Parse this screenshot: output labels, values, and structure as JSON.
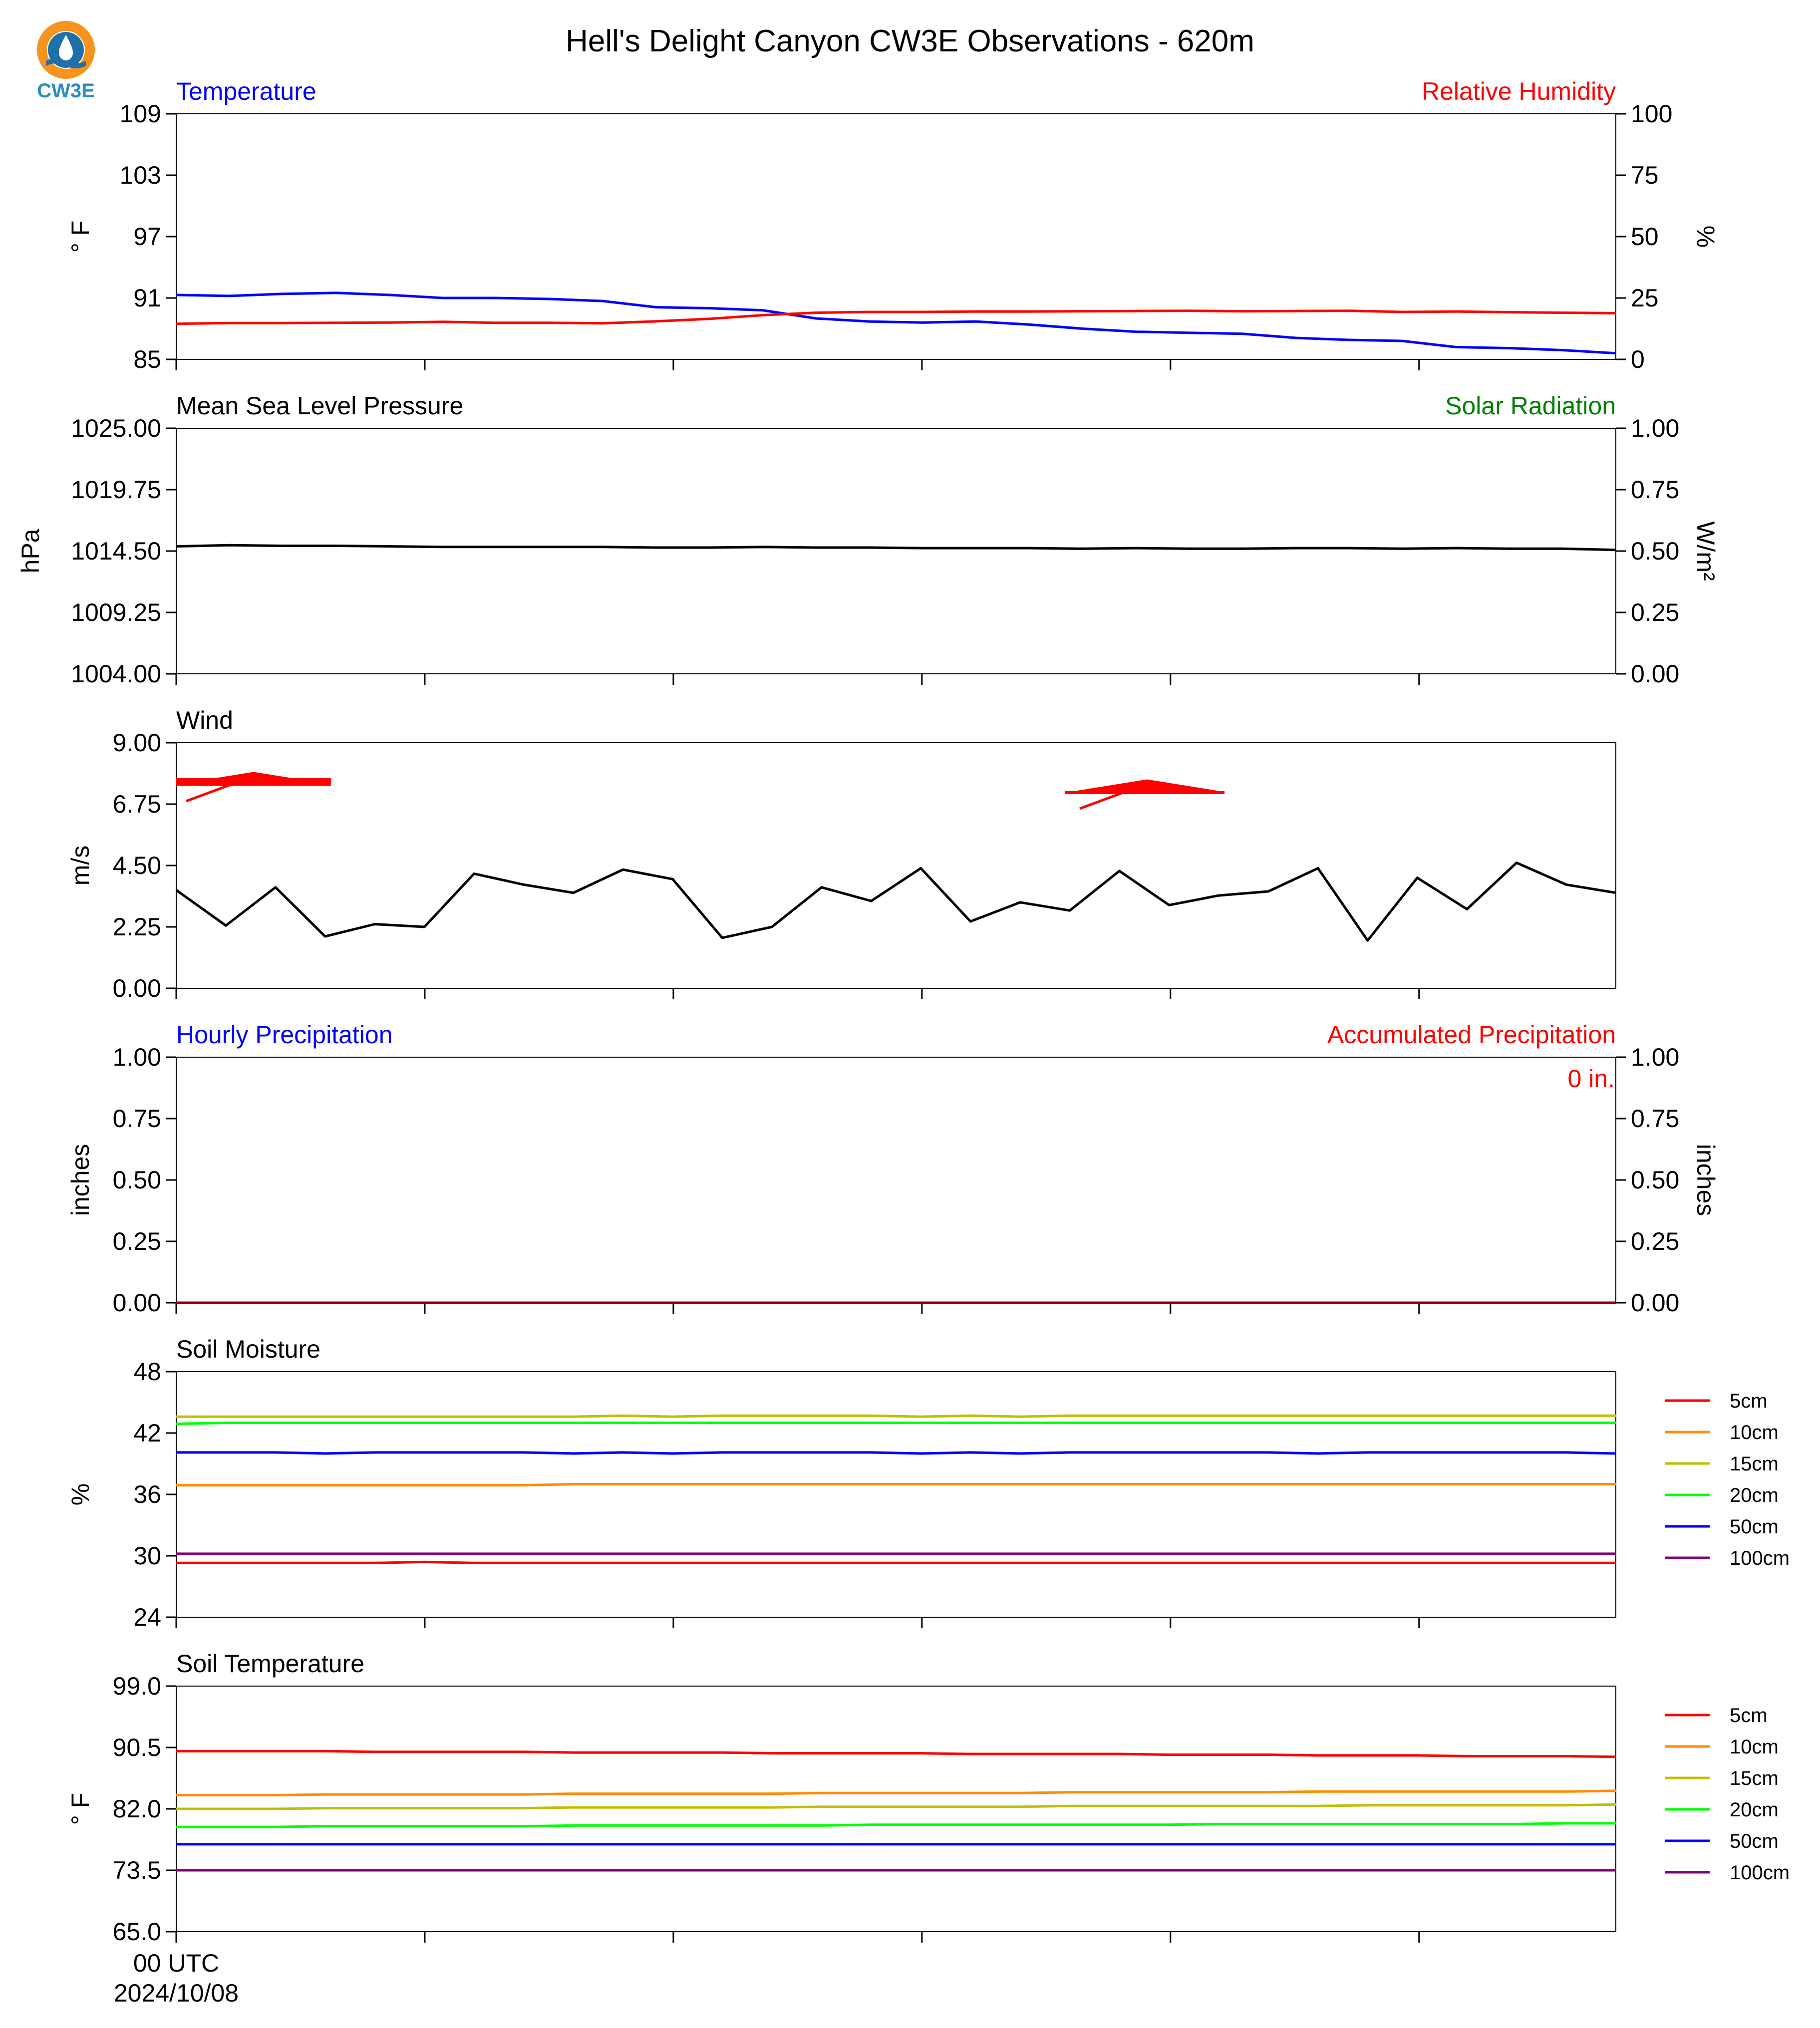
{
  "title": "Hell's Delight Canyon CW3E Observations - 620m",
  "logo": {
    "text": "CW3E",
    "color_top": "#f7941d",
    "color_bottom": "#1f6fa8"
  },
  "xaxis": {
    "first_tick": "00 UTC",
    "first_date": "2024/10/08"
  },
  "chart_data": [
    {
      "type": "line",
      "panel": "temperature-humidity",
      "left_title": "Temperature",
      "right_title": "Relative Humidity",
      "left_unit": "° F",
      "right_unit": "%",
      "left_ticks": [
        "85",
        "91",
        "97",
        "103",
        "109"
      ],
      "right_ticks": [
        "0",
        "25",
        "50",
        "75",
        "100"
      ],
      "ylim": [
        85,
        109
      ],
      "ylim_right": [
        0,
        100
      ],
      "series": [
        {
          "axis": "left",
          "color": "#0000ff",
          "values": [
            91.3,
            91.2,
            91.4,
            91.5,
            91.3,
            91.0,
            91.0,
            90.9,
            90.7,
            90.1,
            90.0,
            89.8,
            89.0,
            88.7,
            88.6,
            88.7,
            88.4,
            88.0,
            87.7,
            87.6,
            87.5,
            87.1,
            86.9,
            86.8,
            86.2,
            86.1,
            85.9,
            85.6
          ]
        },
        {
          "axis": "right",
          "color": "#ff0000",
          "values": [
            14.5,
            14.8,
            14.8,
            14.9,
            15.0,
            15.3,
            14.9,
            14.9,
            14.7,
            15.5,
            16.5,
            18.0,
            19.0,
            19.3,
            19.3,
            19.5,
            19.5,
            19.6,
            19.7,
            19.8,
            19.6,
            19.7,
            19.8,
            19.3,
            19.5,
            19.2,
            19.0,
            18.8
          ]
        }
      ]
    },
    {
      "type": "line",
      "panel": "pressure-solar",
      "left_title": "Mean Sea Level Pressure",
      "right_title": "Solar Radiation",
      "left_unit": "hPa",
      "right_unit": "W/m²",
      "left_ticks": [
        "1004.00",
        "1009.25",
        "1014.50",
        "1019.75",
        "1025.00"
      ],
      "right_ticks": [
        "0.00",
        "0.25",
        "0.50",
        "0.75",
        "1.00"
      ],
      "ylim": [
        1004,
        1025
      ],
      "ylim_right": [
        0,
        1
      ],
      "series": [
        {
          "axis": "left",
          "color": "#000000",
          "values": [
            1014.9,
            1015.0,
            1014.95,
            1014.95,
            1014.9,
            1014.85,
            1014.85,
            1014.85,
            1014.85,
            1014.8,
            1014.8,
            1014.85,
            1014.8,
            1014.8,
            1014.75,
            1014.75,
            1014.75,
            1014.7,
            1014.75,
            1014.7,
            1014.7,
            1014.75,
            1014.75,
            1014.7,
            1014.75,
            1014.7,
            1014.7,
            1014.6
          ]
        }
      ]
    },
    {
      "type": "line",
      "panel": "wind",
      "left_title": "Wind",
      "left_unit": "m/s",
      "left_ticks": [
        "0.00",
        "2.25",
        "4.50",
        "6.75",
        "9.00"
      ],
      "ylim": [
        0,
        9
      ],
      "series": [
        {
          "axis": "left",
          "color": "#000000",
          "values": [
            3.6,
            2.3,
            3.7,
            1.9,
            2.35,
            2.25,
            4.2,
            3.8,
            3.5,
            4.35,
            4.0,
            1.85,
            2.25,
            3.7,
            3.2,
            4.4,
            2.45,
            3.15,
            2.85,
            4.3,
            3.05,
            3.4,
            3.55,
            4.4,
            1.75,
            4.05,
            2.9,
            4.6,
            3.8,
            3.5
          ]
        }
      ],
      "wind_barbs": [
        {
          "x_index": 0,
          "speed_kt": 15,
          "color": "#ff0000"
        },
        {
          "x_index": 18,
          "speed_kt": 15,
          "color": "#ff0000"
        }
      ]
    },
    {
      "type": "line",
      "panel": "precipitation",
      "left_title": "Hourly Precipitation",
      "right_title": "Accumulated Precipitation",
      "left_unit": "inches",
      "right_unit": "inches",
      "left_ticks": [
        "0.00",
        "0.25",
        "0.50",
        "0.75",
        "1.00"
      ],
      "right_ticks": [
        "0.00",
        "0.25",
        "0.50",
        "0.75",
        "1.00"
      ],
      "ylim": [
        0,
        1
      ],
      "ylim_right": [
        0,
        1
      ],
      "accum_label": "0 in.",
      "series": [
        {
          "axis": "left",
          "color": "#0000ff",
          "values": [
            0,
            0,
            0,
            0,
            0,
            0,
            0,
            0,
            0,
            0,
            0,
            0,
            0,
            0,
            0,
            0,
            0,
            0,
            0,
            0,
            0,
            0,
            0,
            0,
            0,
            0,
            0,
            0,
            0,
            0
          ]
        },
        {
          "axis": "right",
          "color": "#8b0000",
          "values": [
            0,
            0,
            0,
            0,
            0,
            0,
            0,
            0,
            0,
            0,
            0,
            0,
            0,
            0,
            0,
            0,
            0,
            0,
            0,
            0,
            0,
            0,
            0,
            0,
            0,
            0,
            0,
            0,
            0,
            0
          ]
        }
      ]
    },
    {
      "type": "line",
      "panel": "soil-moisture",
      "left_title": "Soil Moisture",
      "left_unit": "%",
      "left_ticks": [
        "24",
        "30",
        "36",
        "42",
        "48"
      ],
      "ylim": [
        24,
        48
      ],
      "series": [
        {
          "name": "5cm",
          "color": "#ff0000",
          "values": [
            29.3,
            29.3,
            29.3,
            29.3,
            29.3,
            29.4,
            29.3,
            29.3,
            29.3,
            29.3,
            29.3,
            29.3,
            29.3,
            29.3,
            29.3,
            29.3,
            29.3,
            29.3,
            29.3,
            29.3,
            29.3,
            29.3,
            29.3,
            29.3,
            29.3,
            29.3,
            29.3,
            29.3,
            29.3,
            29.3
          ]
        },
        {
          "name": "10cm",
          "color": "#ff8c00",
          "values": [
            36.9,
            36.9,
            36.9,
            36.9,
            36.9,
            36.9,
            36.9,
            36.9,
            37.0,
            37.0,
            37.0,
            37.0,
            37.0,
            37.0,
            37.0,
            37.0,
            37.0,
            37.0,
            37.0,
            37.0,
            37.0,
            37.0,
            37.0,
            37.0,
            37.0,
            37.0,
            37.0,
            37.0,
            37.0,
            37.0
          ]
        },
        {
          "name": "15cm",
          "color": "#bfbf00",
          "values": [
            43.6,
            43.6,
            43.6,
            43.6,
            43.6,
            43.6,
            43.6,
            43.6,
            43.6,
            43.7,
            43.6,
            43.7,
            43.7,
            43.7,
            43.7,
            43.6,
            43.7,
            43.6,
            43.7,
            43.7,
            43.7,
            43.7,
            43.7,
            43.7,
            43.7,
            43.7,
            43.7,
            43.7,
            43.7,
            43.7
          ]
        },
        {
          "name": "20cm",
          "color": "#00ff00",
          "values": [
            42.9,
            43.0,
            43.0,
            43.0,
            43.0,
            43.0,
            43.0,
            43.0,
            43.0,
            43.0,
            43.0,
            43.0,
            43.0,
            43.0,
            43.0,
            43.0,
            43.0,
            43.0,
            43.0,
            43.0,
            43.0,
            43.0,
            43.0,
            43.0,
            43.0,
            43.0,
            43.0,
            43.0,
            43.0,
            43.0
          ]
        },
        {
          "name": "50cm",
          "color": "#0000ff",
          "values": [
            40.1,
            40.1,
            40.1,
            40.0,
            40.1,
            40.1,
            40.1,
            40.1,
            40.0,
            40.1,
            40.0,
            40.1,
            40.1,
            40.1,
            40.1,
            40.0,
            40.1,
            40.0,
            40.1,
            40.1,
            40.1,
            40.1,
            40.1,
            40.0,
            40.1,
            40.1,
            40.1,
            40.1,
            40.1,
            40.0
          ]
        },
        {
          "name": "100cm",
          "color": "#800080",
          "values": [
            30.2,
            30.2,
            30.2,
            30.2,
            30.2,
            30.2,
            30.2,
            30.2,
            30.2,
            30.2,
            30.2,
            30.2,
            30.2,
            30.2,
            30.2,
            30.2,
            30.2,
            30.2,
            30.2,
            30.2,
            30.2,
            30.2,
            30.2,
            30.2,
            30.2,
            30.2,
            30.2,
            30.2,
            30.2,
            30.2
          ]
        }
      ]
    },
    {
      "type": "line",
      "panel": "soil-temperature",
      "left_title": "Soil Temperature",
      "left_unit": "° F",
      "left_ticks": [
        "65.0",
        "73.5",
        "82.0",
        "90.5",
        "99.0"
      ],
      "ylim": [
        65,
        99
      ],
      "series": [
        {
          "name": "5cm",
          "color": "#ff0000",
          "values": [
            90.0,
            90.0,
            90.0,
            90.0,
            89.9,
            89.9,
            89.9,
            89.9,
            89.8,
            89.8,
            89.8,
            89.8,
            89.7,
            89.7,
            89.7,
            89.7,
            89.6,
            89.6,
            89.6,
            89.6,
            89.5,
            89.5,
            89.5,
            89.4,
            89.4,
            89.4,
            89.3,
            89.3,
            89.3,
            89.2
          ]
        },
        {
          "name": "10cm",
          "color": "#ff8c00",
          "values": [
            83.9,
            83.9,
            83.9,
            84.0,
            84.0,
            84.0,
            84.0,
            84.0,
            84.1,
            84.1,
            84.1,
            84.1,
            84.1,
            84.2,
            84.2,
            84.2,
            84.2,
            84.2,
            84.3,
            84.3,
            84.3,
            84.3,
            84.3,
            84.4,
            84.4,
            84.4,
            84.4,
            84.4,
            84.4,
            84.5
          ]
        },
        {
          "name": "15cm",
          "color": "#bfbf00",
          "values": [
            82.0,
            82.0,
            82.0,
            82.1,
            82.1,
            82.1,
            82.1,
            82.1,
            82.2,
            82.2,
            82.2,
            82.2,
            82.2,
            82.3,
            82.3,
            82.3,
            82.3,
            82.3,
            82.4,
            82.4,
            82.4,
            82.4,
            82.4,
            82.4,
            82.5,
            82.5,
            82.5,
            82.5,
            82.5,
            82.6
          ]
        },
        {
          "name": "20cm",
          "color": "#00ff00",
          "values": [
            79.5,
            79.5,
            79.5,
            79.6,
            79.6,
            79.6,
            79.6,
            79.6,
            79.7,
            79.7,
            79.7,
            79.7,
            79.7,
            79.7,
            79.8,
            79.8,
            79.8,
            79.8,
            79.8,
            79.8,
            79.8,
            79.9,
            79.9,
            79.9,
            79.9,
            79.9,
            79.9,
            79.9,
            80.0,
            80.0
          ]
        },
        {
          "name": "50cm",
          "color": "#0000ff",
          "values": [
            77.1,
            77.1,
            77.1,
            77.1,
            77.1,
            77.1,
            77.1,
            77.1,
            77.1,
            77.1,
            77.1,
            77.1,
            77.1,
            77.1,
            77.1,
            77.1,
            77.1,
            77.1,
            77.1,
            77.1,
            77.1,
            77.1,
            77.1,
            77.1,
            77.1,
            77.1,
            77.1,
            77.1,
            77.1,
            77.1
          ]
        },
        {
          "name": "100cm",
          "color": "#800080",
          "values": [
            73.5,
            73.5,
            73.5,
            73.5,
            73.5,
            73.5,
            73.5,
            73.5,
            73.5,
            73.5,
            73.5,
            73.5,
            73.5,
            73.5,
            73.5,
            73.5,
            73.5,
            73.5,
            73.5,
            73.5,
            73.5,
            73.5,
            73.5,
            73.5,
            73.5,
            73.5,
            73.5,
            73.5,
            73.5,
            73.5
          ]
        }
      ]
    }
  ]
}
